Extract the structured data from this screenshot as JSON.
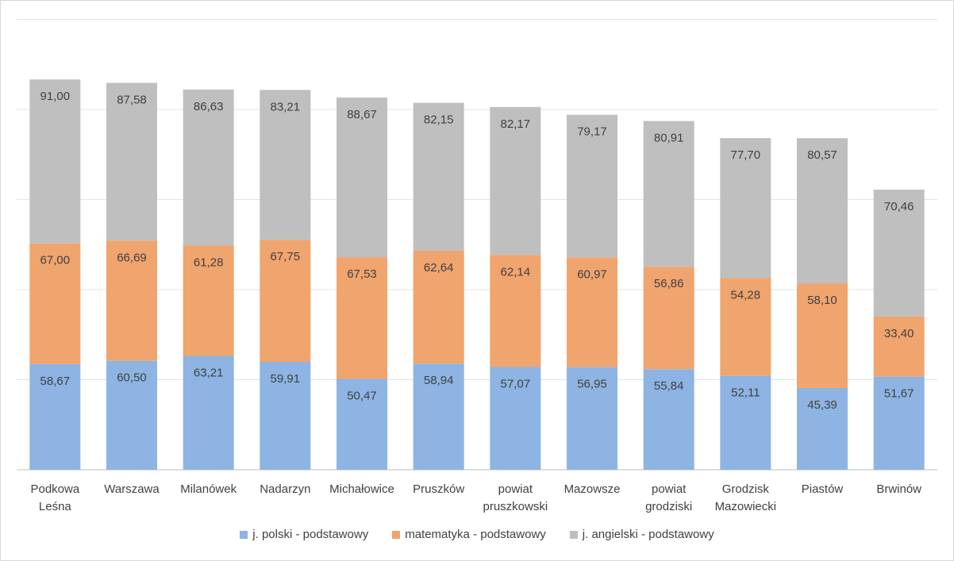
{
  "chart_data": {
    "type": "stacked-bar",
    "categories": [
      "Podkowa\nLeśna",
      "Warszawa",
      "Milanówek",
      "Nadarzyn",
      "Michałowice",
      "Pruszków",
      "powiat\npruszkowski",
      "Mazowsze",
      "powiat\ngrodziski",
      "Grodzisk\nMazowiecki",
      "Piastów",
      "Brwinów"
    ],
    "series": [
      {
        "name": "j. polski - podstawowy",
        "color": "#8db4e2",
        "values": [
          58.67,
          60.5,
          63.21,
          59.91,
          50.47,
          58.94,
          57.07,
          56.95,
          55.84,
          52.11,
          45.39,
          51.67
        ]
      },
      {
        "name": "matematyka - podstawowy",
        "color": "#f0a46e",
        "values": [
          67.0,
          66.69,
          61.28,
          67.75,
          67.53,
          62.64,
          62.14,
          60.97,
          56.86,
          54.28,
          58.1,
          33.4
        ]
      },
      {
        "name": "j. angielski - podstawowy",
        "color": "#bfbfbf",
        "values": [
          91.0,
          87.58,
          86.63,
          83.21,
          88.67,
          82.15,
          82.17,
          79.17,
          80.91,
          77.7,
          80.57,
          70.46
        ]
      }
    ],
    "decimal": ",",
    "ylim": [
      0,
      260
    ],
    "grid": true,
    "legend": "bottom"
  }
}
